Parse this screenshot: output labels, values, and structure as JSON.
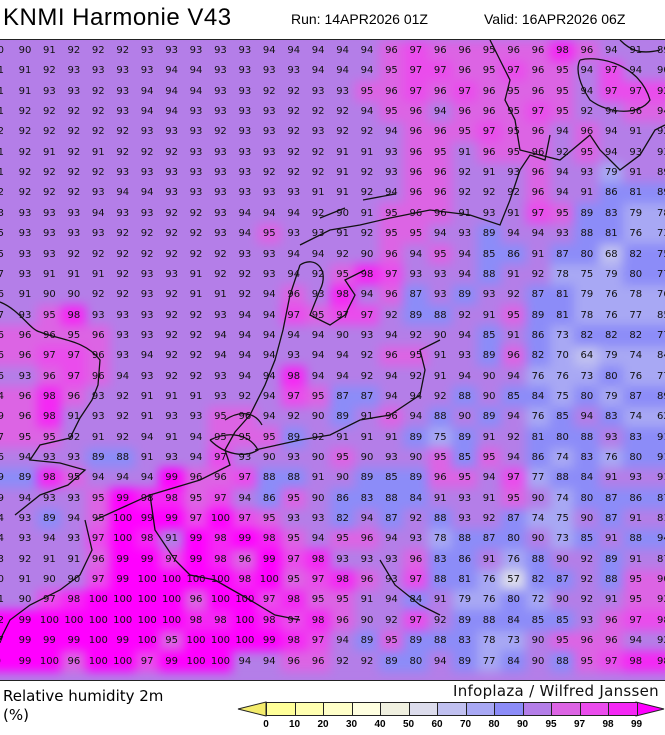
{
  "header": {
    "title": "KNMI Harmonie V43",
    "run": "Run: 14APR2026 01Z",
    "valid": "Valid: 16APR2026 06Z"
  },
  "map": {
    "credit": "Infoplaza / Wilfred Janssen",
    "grid_values": [
      [
        "0",
        "90",
        "91",
        "92",
        "92",
        "92",
        "93",
        "93",
        "93",
        "93",
        "93",
        "94",
        "94",
        "94",
        "94",
        "94",
        "96",
        "97",
        "96",
        "96",
        "95",
        "96",
        "96",
        "98",
        "96",
        "94",
        "91",
        "89"
      ],
      [
        "1",
        "91",
        "92",
        "93",
        "93",
        "93",
        "93",
        "94",
        "94",
        "93",
        "93",
        "93",
        "93",
        "94",
        "94",
        "94",
        "95",
        "97",
        "97",
        "96",
        "95",
        "97",
        "96",
        "95",
        "94",
        "97",
        "94",
        "90"
      ],
      [
        "1",
        "91",
        "93",
        "93",
        "92",
        "93",
        "94",
        "94",
        "94",
        "93",
        "93",
        "92",
        "92",
        "93",
        "93",
        "95",
        "96",
        "97",
        "96",
        "97",
        "96",
        "95",
        "96",
        "95",
        "94",
        "97",
        "97",
        "92"
      ],
      [
        "1",
        "92",
        "92",
        "92",
        "92",
        "93",
        "94",
        "94",
        "93",
        "93",
        "93",
        "93",
        "92",
        "92",
        "92",
        "94",
        "95",
        "96",
        "94",
        "96",
        "96",
        "95",
        "97",
        "95",
        "92",
        "94",
        "96",
        "94"
      ],
      [
        "2",
        "92",
        "92",
        "92",
        "92",
        "92",
        "93",
        "93",
        "93",
        "92",
        "93",
        "93",
        "92",
        "93",
        "92",
        "92",
        "94",
        "96",
        "96",
        "95",
        "97",
        "95",
        "96",
        "94",
        "96",
        "94",
        "91",
        "92"
      ],
      [
        "1",
        "92",
        "91",
        "92",
        "91",
        "92",
        "92",
        "92",
        "93",
        "93",
        "93",
        "93",
        "92",
        "92",
        "91",
        "91",
        "93",
        "96",
        "95",
        "91",
        "96",
        "95",
        "96",
        "92",
        "95",
        "94",
        "93",
        "93"
      ],
      [
        "1",
        "92",
        "92",
        "92",
        "92",
        "93",
        "93",
        "93",
        "93",
        "93",
        "93",
        "92",
        "92",
        "92",
        "91",
        "92",
        "93",
        "96",
        "96",
        "92",
        "91",
        "93",
        "96",
        "94",
        "93",
        "79",
        "91",
        "89"
      ],
      [
        "2",
        "92",
        "92",
        "92",
        "93",
        "94",
        "94",
        "93",
        "93",
        "93",
        "93",
        "93",
        "93",
        "91",
        "91",
        "92",
        "94",
        "96",
        "96",
        "92",
        "92",
        "92",
        "96",
        "94",
        "91",
        "86",
        "81",
        "89"
      ],
      [
        "3",
        "93",
        "93",
        "93",
        "94",
        "93",
        "93",
        "92",
        "92",
        "93",
        "94",
        "94",
        "94",
        "92",
        "90",
        "91",
        "95",
        "96",
        "96",
        "91",
        "93",
        "91",
        "97",
        "95",
        "89",
        "83",
        "79",
        "78"
      ],
      [
        "5",
        "93",
        "93",
        "93",
        "93",
        "92",
        "92",
        "92",
        "92",
        "93",
        "94",
        "95",
        "93",
        "93",
        "91",
        "92",
        "95",
        "95",
        "94",
        "93",
        "89",
        "94",
        "94",
        "93",
        "88",
        "81",
        "76",
        "73"
      ],
      [
        "5",
        "93",
        "93",
        "92",
        "92",
        "92",
        "92",
        "92",
        "92",
        "92",
        "93",
        "93",
        "94",
        "94",
        "92",
        "90",
        "96",
        "94",
        "95",
        "94",
        "85",
        "86",
        "91",
        "87",
        "80",
        "68",
        "82",
        "75"
      ],
      [
        "7",
        "93",
        "91",
        "91",
        "91",
        "92",
        "93",
        "93",
        "91",
        "92",
        "92",
        "93",
        "94",
        "92",
        "95",
        "98",
        "97",
        "93",
        "93",
        "94",
        "88",
        "91",
        "92",
        "78",
        "75",
        "79",
        "80",
        "77"
      ],
      [
        "6",
        "91",
        "90",
        "90",
        "92",
        "92",
        "93",
        "92",
        "91",
        "91",
        "92",
        "94",
        "96",
        "93",
        "98",
        "94",
        "96",
        "87",
        "93",
        "89",
        "93",
        "92",
        "87",
        "81",
        "79",
        "76",
        "78",
        "76"
      ],
      [
        "7",
        "93",
        "95",
        "98",
        "93",
        "93",
        "93",
        "92",
        "92",
        "93",
        "94",
        "94",
        "97",
        "95",
        "97",
        "97",
        "92",
        "89",
        "88",
        "92",
        "91",
        "95",
        "89",
        "81",
        "78",
        "76",
        "77",
        "85"
      ],
      [
        "6",
        "96",
        "96",
        "95",
        "96",
        "93",
        "93",
        "92",
        "92",
        "94",
        "94",
        "94",
        "94",
        "94",
        "90",
        "93",
        "94",
        "92",
        "90",
        "94",
        "85",
        "91",
        "86",
        "73",
        "82",
        "82",
        "82",
        "77"
      ],
      [
        "6",
        "96",
        "97",
        "97",
        "96",
        "93",
        "94",
        "92",
        "92",
        "94",
        "94",
        "94",
        "93",
        "94",
        "94",
        "92",
        "96",
        "95",
        "91",
        "93",
        "89",
        "96",
        "82",
        "70",
        "64",
        "79",
        "74",
        "84"
      ],
      [
        "6",
        "93",
        "96",
        "97",
        "96",
        "94",
        "93",
        "92",
        "92",
        "93",
        "94",
        "94",
        "98",
        "94",
        "94",
        "92",
        "94",
        "92",
        "91",
        "94",
        "90",
        "94",
        "76",
        "76",
        "73",
        "80",
        "76",
        "77"
      ],
      [
        "4",
        "96",
        "98",
        "96",
        "93",
        "92",
        "91",
        "91",
        "91",
        "93",
        "92",
        "94",
        "97",
        "95",
        "87",
        "87",
        "94",
        "94",
        "92",
        "88",
        "90",
        "85",
        "84",
        "75",
        "80",
        "79",
        "87",
        "89"
      ],
      [
        "9",
        "96",
        "98",
        "91",
        "93",
        "92",
        "91",
        "93",
        "93",
        "95",
        "96",
        "94",
        "92",
        "90",
        "89",
        "91",
        "96",
        "94",
        "88",
        "90",
        "89",
        "94",
        "76",
        "85",
        "94",
        "83",
        "74",
        "62"
      ],
      [
        "7",
        "95",
        "95",
        "92",
        "91",
        "92",
        "94",
        "91",
        "94",
        "95",
        "95",
        "95",
        "89",
        "92",
        "91",
        "91",
        "91",
        "89",
        "75",
        "89",
        "91",
        "92",
        "81",
        "80",
        "88",
        "93",
        "83",
        "91"
      ],
      [
        "6",
        "94",
        "93",
        "93",
        "89",
        "88",
        "91",
        "93",
        "94",
        "97",
        "93",
        "90",
        "93",
        "90",
        "95",
        "90",
        "93",
        "90",
        "95",
        "85",
        "95",
        "94",
        "86",
        "74",
        "83",
        "76",
        "80",
        "91"
      ],
      [
        "9",
        "89",
        "98",
        "95",
        "94",
        "94",
        "94",
        "99",
        "96",
        "96",
        "97",
        "88",
        "88",
        "91",
        "90",
        "89",
        "85",
        "89",
        "96",
        "95",
        "94",
        "97",
        "77",
        "88",
        "84",
        "91",
        "93",
        "91"
      ],
      [
        "9",
        "94",
        "93",
        "93",
        "95",
        "99",
        "98",
        "98",
        "95",
        "97",
        "94",
        "86",
        "95",
        "90",
        "86",
        "83",
        "88",
        "84",
        "91",
        "93",
        "91",
        "95",
        "90",
        "74",
        "80",
        "87",
        "86",
        "87"
      ],
      [
        "4",
        "93",
        "89",
        "94",
        "95",
        "100",
        "99",
        "99",
        "97",
        "100",
        "97",
        "95",
        "93",
        "93",
        "82",
        "94",
        "87",
        "92",
        "88",
        "93",
        "92",
        "87",
        "74",
        "75",
        "90",
        "87",
        "91",
        "81"
      ],
      [
        "4",
        "93",
        "94",
        "93",
        "97",
        "100",
        "98",
        "91",
        "99",
        "98",
        "99",
        "98",
        "95",
        "94",
        "95",
        "96",
        "94",
        "93",
        "78",
        "88",
        "87",
        "80",
        "90",
        "73",
        "85",
        "91",
        "88",
        "94"
      ],
      [
        "3",
        "92",
        "91",
        "91",
        "96",
        "99",
        "99",
        "97",
        "99",
        "98",
        "96",
        "99",
        "97",
        "98",
        "93",
        "93",
        "93",
        "96",
        "83",
        "86",
        "91",
        "76",
        "88",
        "90",
        "92",
        "89",
        "91",
        "87"
      ],
      [
        "0",
        "91",
        "90",
        "90",
        "97",
        "99",
        "100",
        "100",
        "100",
        "100",
        "98",
        "100",
        "95",
        "97",
        "98",
        "96",
        "93",
        "97",
        "88",
        "81",
        "76",
        "57",
        "82",
        "87",
        "92",
        "88",
        "95",
        "90"
      ],
      [
        "1",
        "90",
        "97",
        "98",
        "100",
        "100",
        "100",
        "100",
        "96",
        "100",
        "100",
        "97",
        "98",
        "95",
        "95",
        "91",
        "94",
        "84",
        "91",
        "79",
        "76",
        "80",
        "72",
        "90",
        "92",
        "91",
        "95",
        "92"
      ],
      [
        "2",
        "99",
        "100",
        "100",
        "100",
        "100",
        "100",
        "100",
        "98",
        "98",
        "100",
        "98",
        "97",
        "98",
        "96",
        "90",
        "92",
        "97",
        "92",
        "89",
        "88",
        "84",
        "85",
        "85",
        "93",
        "96",
        "97",
        "98"
      ],
      [
        "7",
        "99",
        "99",
        "99",
        "100",
        "99",
        "100",
        "95",
        "100",
        "100",
        "100",
        "99",
        "98",
        "97",
        "94",
        "89",
        "95",
        "89",
        "88",
        "83",
        "78",
        "73",
        "90",
        "95",
        "96",
        "96",
        "94",
        "92"
      ],
      [
        "90",
        "99",
        "100",
        "96",
        "100",
        "100",
        "97",
        "99",
        "100",
        "100",
        "94",
        "94",
        "96",
        "96",
        "92",
        "92",
        "89",
        "80",
        "94",
        "89",
        "77",
        "84",
        "90",
        "88",
        "95",
        "97",
        "98",
        "98"
      ]
    ]
  },
  "legend": {
    "variable": "Relative humidity 2m",
    "unit": "(%)",
    "ticks": [
      "0",
      "10",
      "20",
      "30",
      "40",
      "50",
      "60",
      "70",
      "80",
      "90",
      "95",
      "97",
      "98",
      "99"
    ],
    "below_color": "#f4ec6c",
    "above_color": "#ff00ff",
    "colors": [
      "#ffff99",
      "#ffffb0",
      "#ffffc8",
      "#ffffe0",
      "#f0f0e0",
      "#dcdcec",
      "#c0c0f0",
      "#a8a8f4",
      "#8c8cf8",
      "#b47ee8",
      "#dc64e4",
      "#ea4cec",
      "#f428f4"
    ]
  }
}
